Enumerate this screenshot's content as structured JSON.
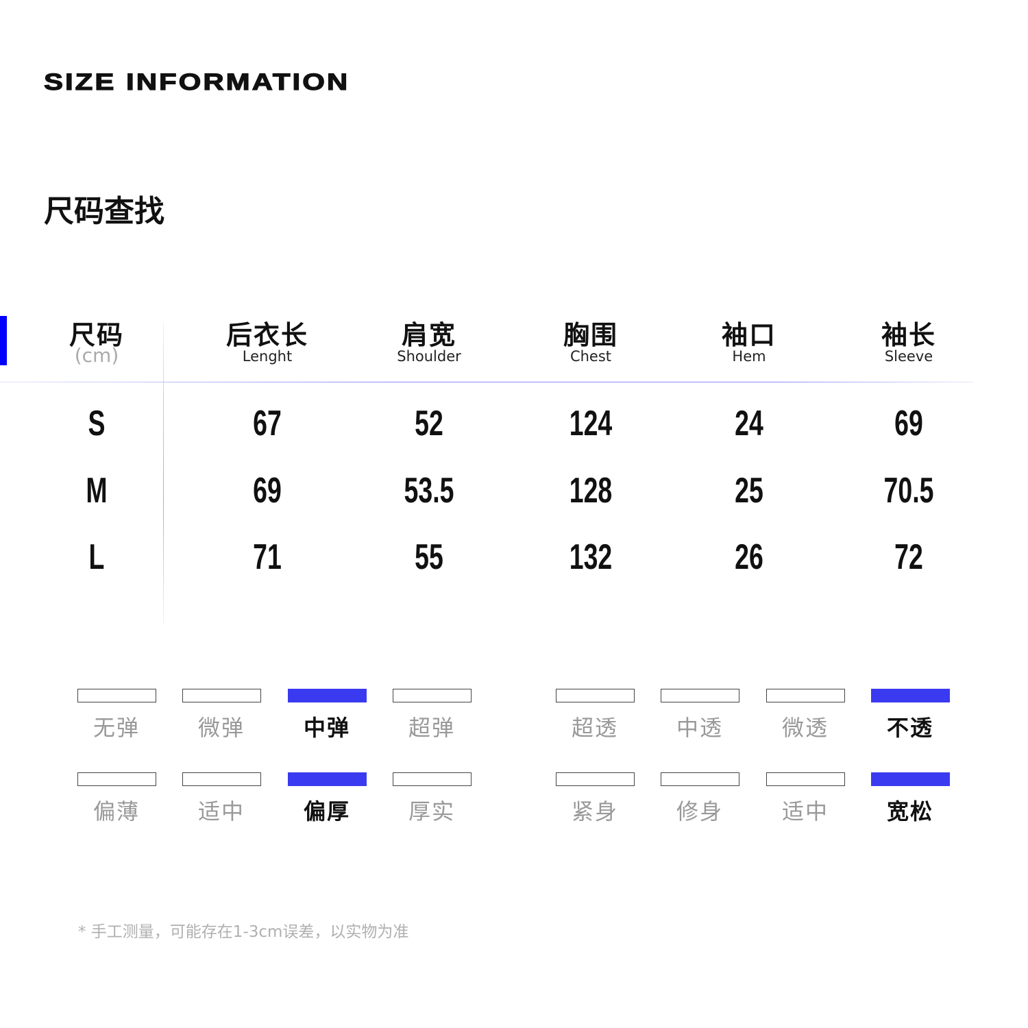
{
  "title": "SIZE INFORMATION",
  "subtitle": "尺码查找",
  "colors": {
    "accent": "#0000ff",
    "selected": "#3a3af0"
  },
  "table": {
    "size_header": {
      "zh": "尺码",
      "unit": "(cm)"
    },
    "columns": [
      {
        "zh": "后衣长",
        "en": "Lenght"
      },
      {
        "zh": "肩宽",
        "en": "Shoulder"
      },
      {
        "zh": "胸围",
        "en": "Chest"
      },
      {
        "zh": "袖口",
        "en": "Hem"
      },
      {
        "zh": "袖长",
        "en": "Sleeve"
      }
    ],
    "rows": [
      {
        "size": "S",
        "values": [
          "67",
          "52",
          "124",
          "24",
          "69"
        ]
      },
      {
        "size": "M",
        "values": [
          "69",
          "53.5",
          "128",
          "25",
          "70.5"
        ]
      },
      {
        "size": "L",
        "values": [
          "71",
          "55",
          "132",
          "26",
          "72"
        ]
      }
    ]
  },
  "scales": [
    {
      "options": [
        "无弹",
        "微弹",
        "中弹",
        "超弹"
      ],
      "selected": 2
    },
    {
      "options": [
        "超透",
        "中透",
        "微透",
        "不透"
      ],
      "selected": 3
    },
    {
      "options": [
        "偏薄",
        "适中",
        "偏厚",
        "厚实"
      ],
      "selected": 2
    },
    {
      "options": [
        "紧身",
        "修身",
        "适中",
        "宽松"
      ],
      "selected": 3
    }
  ],
  "note": "* 手工测量，可能存在1-3cm误差，以实物为准"
}
